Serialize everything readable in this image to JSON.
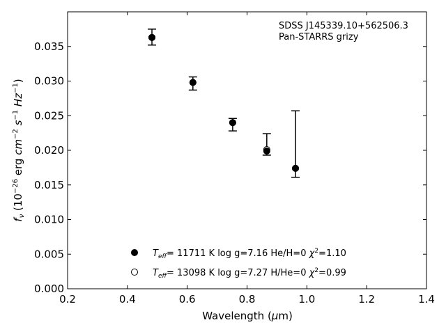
{
  "chart_data": {
    "type": "scatter",
    "title": "",
    "annotation_lines": [
      "SDSS J145339.10+562506.3",
      "Pan-STARRS grizy"
    ],
    "xlabel": "Wavelength (μm)",
    "ylabel": "f_ν (10^-26 erg cm^-2 s^-1 Hz^-1)",
    "xlim": [
      0.2,
      1.4
    ],
    "ylim": [
      0.0,
      0.04
    ],
    "xticks": [
      "0.2",
      "0.4",
      "0.6",
      "0.8",
      "1.0",
      "1.2",
      "1.4"
    ],
    "yticks": [
      "0.000",
      "0.005",
      "0.010",
      "0.015",
      "0.020",
      "0.025",
      "0.030",
      "0.035"
    ],
    "grid": false,
    "legend_position": "bottom-center",
    "observed": {
      "x": [
        0.482,
        0.619,
        0.752,
        0.866,
        0.962
      ],
      "y": [
        0.0363,
        0.0297,
        0.024,
        0.02,
        0.0174
      ],
      "err_low": [
        0.0011,
        0.001,
        0.0012,
        0.0007,
        0.0013
      ],
      "err_high": [
        0.0012,
        0.0009,
        0.0006,
        0.0024,
        0.0083
      ]
    },
    "series": [
      {
        "marker": "filled-circle",
        "teff": "11711",
        "logg": "log g=7.16",
        "comp": "He/H=0",
        "chi2": "1.10",
        "x": [
          0.482,
          0.619,
          0.752,
          0.866,
          0.962
        ],
        "y": [
          0.0363,
          0.0298,
          0.024,
          0.0199,
          0.0174
        ]
      },
      {
        "marker": "open-circle",
        "teff": "13098",
        "logg": "log g=7.27",
        "comp": "H/He=0",
        "chi2": "0.99",
        "x": [
          0.482,
          0.619,
          0.752,
          0.866,
          0.962
        ],
        "y": [
          0.0363,
          0.0298,
          0.024,
          0.0201,
          0.0174
        ]
      }
    ]
  }
}
